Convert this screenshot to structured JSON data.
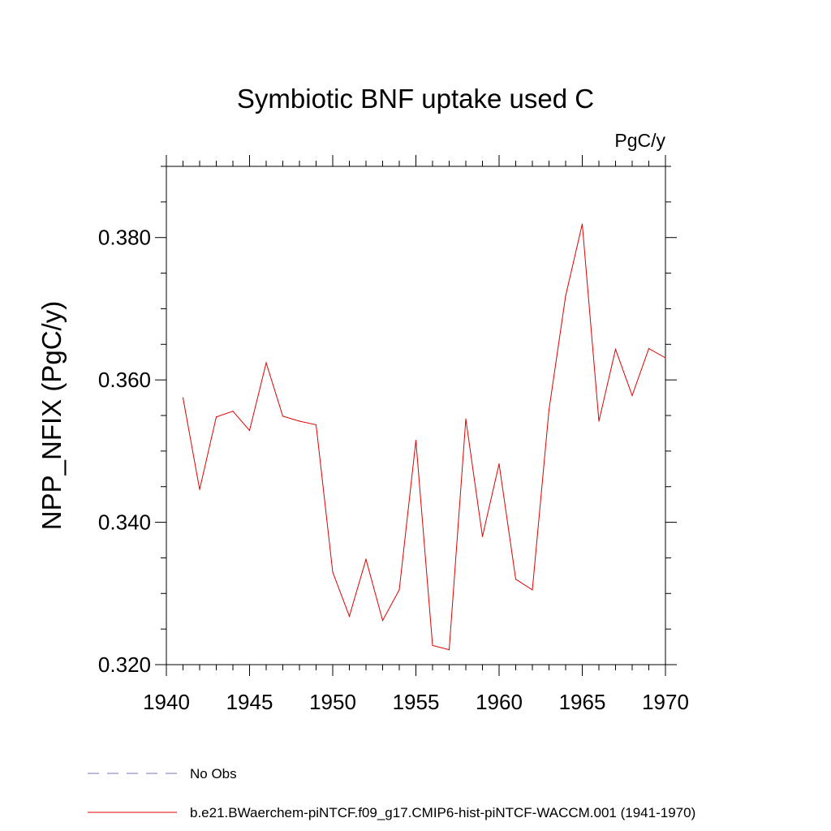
{
  "chart_data": {
    "type": "line",
    "title": "Symbiotic BNF uptake used C",
    "units_label": "PgC/y",
    "ylabel": "NPP_NFIX  (PgC/y)",
    "xlabel": "",
    "xlim": [
      1940,
      1970
    ],
    "ylim": [
      0.32,
      0.39
    ],
    "x_ticks": [
      1940,
      1945,
      1950,
      1955,
      1960,
      1965,
      1970
    ],
    "x_tick_labels": [
      "1940",
      "1945",
      "1950",
      "1955",
      "1960",
      "1965",
      "1970"
    ],
    "y_ticks": [
      0.32,
      0.34,
      0.36,
      0.38
    ],
    "y_tick_labels": [
      "0.320",
      "0.340",
      "0.360",
      "0.380"
    ],
    "grid": false,
    "series": [
      {
        "name": "b.e21.BWaerchem-piNTCF.f09_g17.CMIP6-hist-piNTCF-WACCM.001 (1941-1970)",
        "color": "#e00000",
        "x": [
          1941,
          1942,
          1943,
          1944,
          1945,
          1946,
          1947,
          1948,
          1949,
          1950,
          1951,
          1952,
          1953,
          1954,
          1955,
          1956,
          1957,
          1958,
          1959,
          1960,
          1961,
          1962,
          1963,
          1964,
          1965,
          1966,
          1967,
          1968,
          1969,
          1970
        ],
        "y": [
          0.3575,
          0.3446,
          0.3548,
          0.3556,
          0.3529,
          0.3624,
          0.3549,
          0.3542,
          0.3537,
          0.333,
          0.3268,
          0.3348,
          0.3262,
          0.3305,
          0.3515,
          0.3227,
          0.3221,
          0.3545,
          0.338,
          0.3482,
          0.332,
          0.3305,
          0.3558,
          0.3718,
          0.3819,
          0.3542,
          0.3643,
          0.3578,
          0.3644,
          0.3631
        ]
      }
    ],
    "legend": [
      {
        "label": "No Obs",
        "style": "dashed",
        "color": "#7b6fb0"
      },
      {
        "label": "b.e21.BWaerchem-piNTCF.f09_g17.CMIP6-hist-piNTCF-WACCM.001 (1941-1970)",
        "style": "solid",
        "color": "#e00000"
      }
    ]
  }
}
